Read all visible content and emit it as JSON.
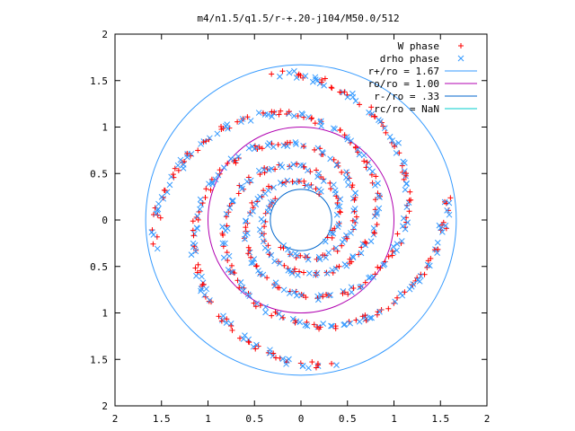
{
  "chart_data": {
    "type": "scatter",
    "title": "m4/n1.5/q1.5/r-+.20-j104/M50.0/512",
    "xlabel": "",
    "ylabel": "",
    "xlim": [
      -2,
      2
    ],
    "ylim": [
      -2,
      2
    ],
    "grid": false,
    "legend_position": "top-right",
    "x_ticks": [
      -2,
      -1.5,
      -1,
      -0.5,
      0,
      0.5,
      1,
      1.5,
      2
    ],
    "y_ticks": [
      -2,
      -1.5,
      -1,
      -0.5,
      0,
      0.5,
      1,
      1.5,
      2
    ],
    "x_tick_labels": [
      "2",
      "1.5",
      "1",
      "0.5",
      "0",
      "0.5",
      "1",
      "1.5",
      "2"
    ],
    "y_tick_labels": [
      "2",
      "1.5",
      "1",
      "0.5",
      "0",
      "0.5",
      "1",
      "1.5",
      "2"
    ],
    "series": [
      {
        "name": "W phase",
        "kind": "points",
        "marker": "plus",
        "color": "#ff0000",
        "pattern": "four-arm trailing spiral in the annulus 0.33 < r < 1.67",
        "arms": 4,
        "r_range": [
          0.35,
          1.62
        ]
      },
      {
        "name": "drho phase",
        "kind": "points",
        "marker": "cross",
        "color": "#3399ff",
        "pattern": "four-arm trailing spiral in the annulus 0.33 < r < 1.67",
        "arms": 4,
        "r_range": [
          0.35,
          1.62
        ]
      },
      {
        "name": "r+/ro = 1.67",
        "kind": "circle",
        "radius": 1.67,
        "color": "#3399ff"
      },
      {
        "name": "ro/ro = 1.00",
        "kind": "circle",
        "radius": 1.0,
        "color": "#b000b0"
      },
      {
        "name": "r-/ro = .33",
        "kind": "circle",
        "radius": 0.33,
        "color": "#0066cc"
      },
      {
        "name": "rc/ro = NaN",
        "kind": "circle",
        "radius": null,
        "color": "#00cccc"
      }
    ]
  }
}
